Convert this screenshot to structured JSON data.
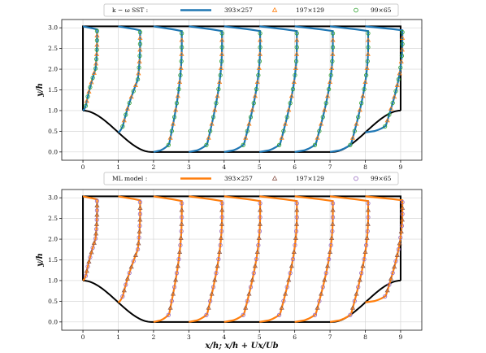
{
  "chart_data": [
    {
      "type": "line",
      "title": "",
      "xlabel": "",
      "ylabel": "y/h",
      "xlim": [
        -0.6,
        9.6
      ],
      "ylim": [
        -0.2,
        3.2
      ],
      "xticks": [
        "0",
        "1",
        "2",
        "3",
        "4",
        "5",
        "6",
        "7",
        "8",
        "9"
      ],
      "yticks": [
        "0.0",
        "0.5",
        "1.0",
        "1.5",
        "2.0",
        "2.5",
        "3.0"
      ],
      "grid": true,
      "legend": {
        "placement": "top",
        "title": "k − ω SST :",
        "entries": [
          {
            "label": "393×257",
            "marker": "line",
            "color": "#1f77b4"
          },
          {
            "label": "197×129",
            "marker": "triangle",
            "color": "#ff7f0e"
          },
          {
            "label": "99×65",
            "marker": "circle",
            "color": "#2ca02c"
          }
        ]
      },
      "profile_stations_x": [
        0,
        1,
        2,
        3,
        4,
        5,
        6,
        7,
        8
      ],
      "profile_peak_Ux_over_Ub": [
        0.4,
        0.62,
        0.8,
        0.94,
        1.02,
        1.06,
        1.08,
        1.08,
        1.05
      ],
      "boundary_color": "#000000"
    },
    {
      "type": "line",
      "title": "",
      "xlabel": "x/h;  x/h + Ux/Ub",
      "ylabel": "y/h",
      "xlim": [
        -0.6,
        9.6
      ],
      "ylim": [
        -0.2,
        3.2
      ],
      "xticks": [
        "0",
        "1",
        "2",
        "3",
        "4",
        "5",
        "6",
        "7",
        "8",
        "9"
      ],
      "yticks": [
        "0.0",
        "0.5",
        "1.0",
        "1.5",
        "2.0",
        "2.5",
        "3.0"
      ],
      "grid": true,
      "legend": {
        "placement": "top",
        "title": "ML model :",
        "entries": [
          {
            "label": "393×257",
            "marker": "line",
            "color": "#ff7f0e"
          },
          {
            "label": "197×129",
            "marker": "triangle",
            "color": "#8c564b"
          },
          {
            "label": "99×65",
            "marker": "circle",
            "color": "#9467bd"
          }
        ]
      },
      "profile_stations_x": [
        0,
        1,
        2,
        3,
        4,
        5,
        6,
        7,
        8
      ],
      "profile_peak_Ux_over_Ub": [
        0.4,
        0.62,
        0.8,
        0.94,
        1.02,
        1.06,
        1.08,
        1.08,
        1.05
      ],
      "boundary_color": "#000000"
    }
  ]
}
